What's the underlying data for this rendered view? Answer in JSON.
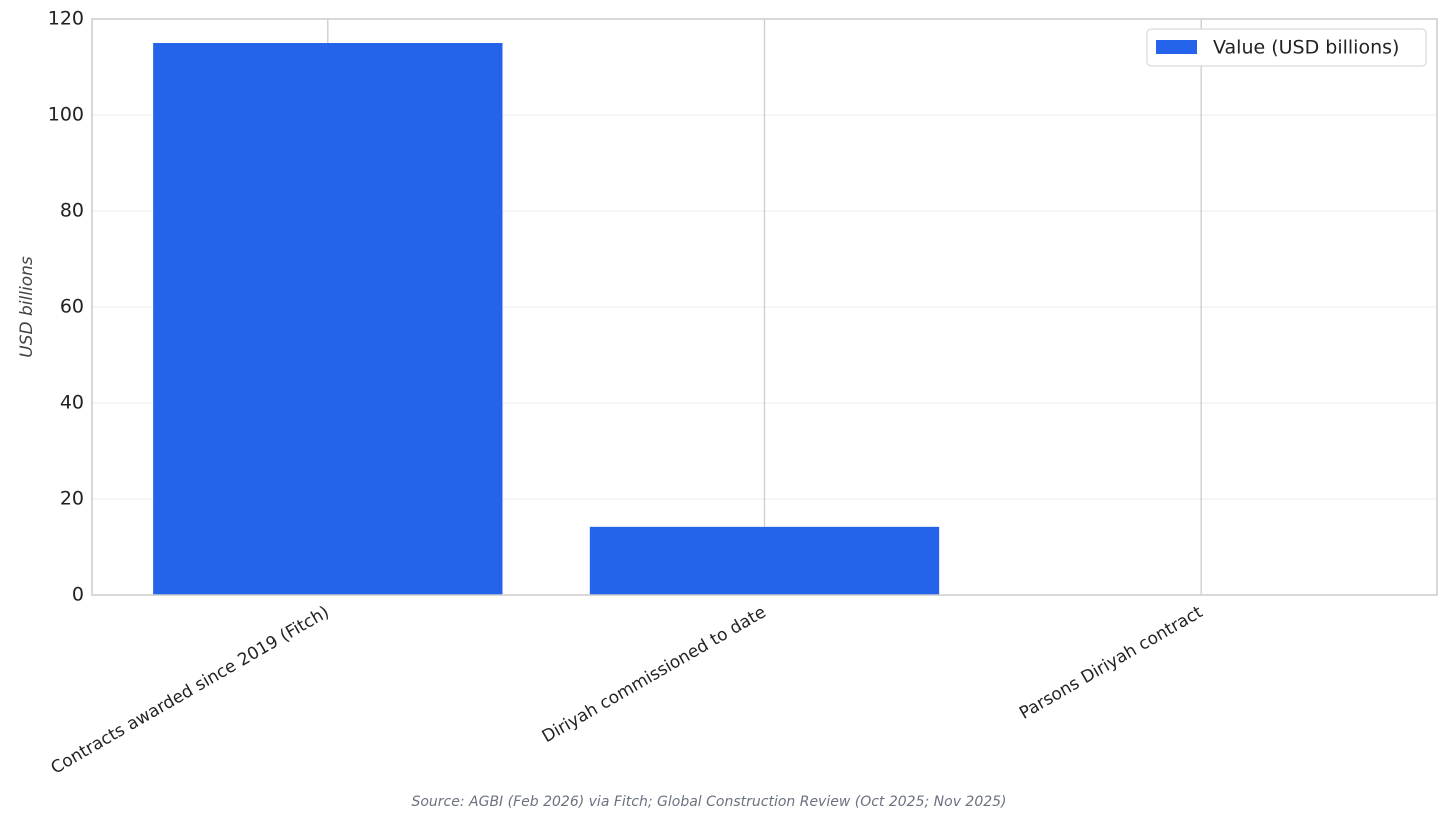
{
  "chart_data": {
    "type": "bar",
    "categories": [
      "Contracts awarded since 2019 (Fitch)",
      "Diriyah commissioned to date",
      "Parsons Diriyah contract"
    ],
    "series": [
      {
        "name": "Value (USD billions)",
        "color": "#2563eb",
        "values": [
          115,
          14.2,
          0
        ]
      }
    ],
    "y_label": "USD billions",
    "ylim": [
      0,
      120
    ],
    "yticks": [
      0,
      20,
      40,
      60,
      80,
      100,
      120
    ],
    "grid": true,
    "legend": "upper right",
    "source": "Source: AGBI (Feb 2026) via Fitch; Global Construction Review (Oct 2025; Nov 2025)"
  }
}
